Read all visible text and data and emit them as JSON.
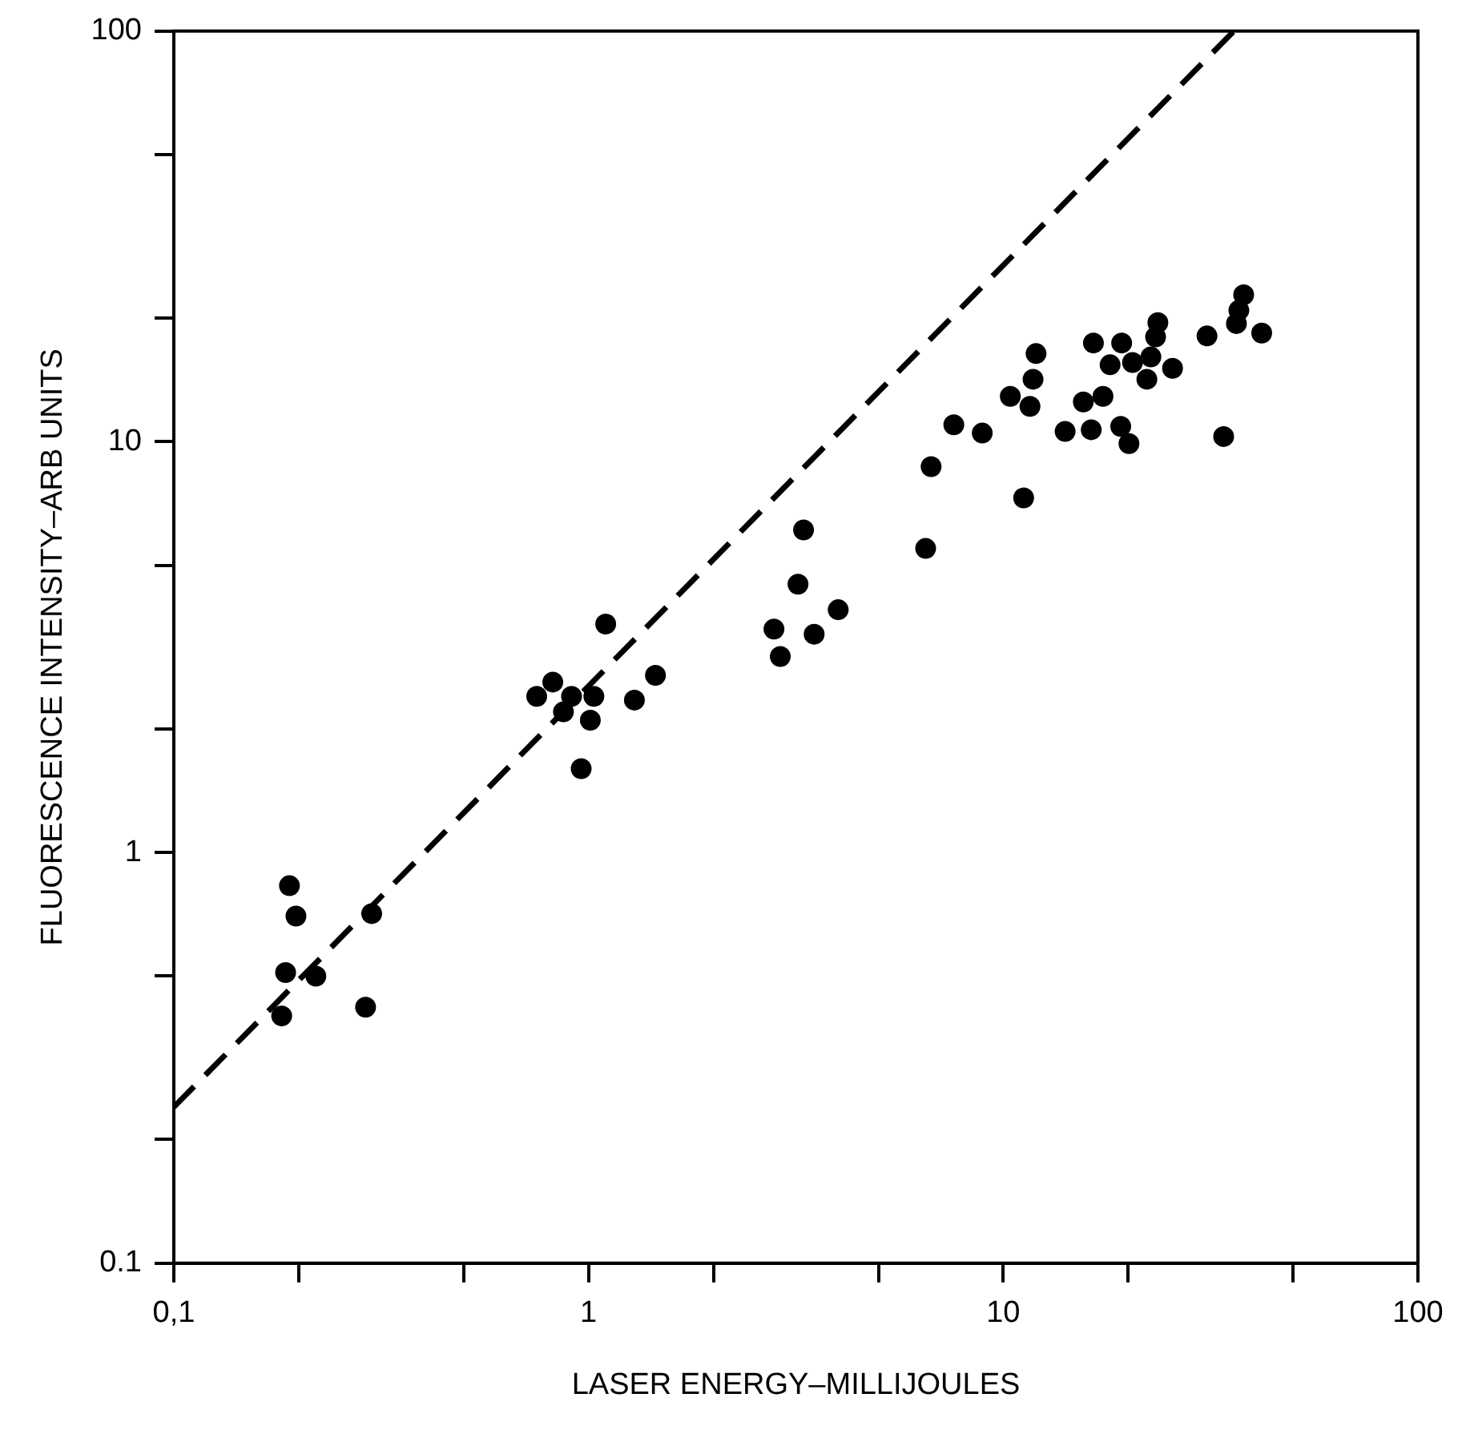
{
  "chart_data": {
    "type": "scatter",
    "xlabel": "LASER ENERGY–MILLIJOULES",
    "ylabel": "FLUORESCENCE INTENSITY–ARB UNITS",
    "log": "xy",
    "xlim": [
      0.1,
      100
    ],
    "ylim": [
      0.1,
      100
    ],
    "xticks": [
      {
        "value": 0.1,
        "label": "0,1"
      },
      {
        "value": 0.2,
        "label": null
      },
      {
        "value": 0.5,
        "label": null
      },
      1,
      {
        "value": 2,
        "label": null
      },
      {
        "value": 5,
        "label": null
      },
      10,
      {
        "value": 20,
        "label": null
      },
      {
        "value": 50,
        "label": null
      },
      100
    ],
    "yticks": [
      0.1,
      {
        "value": 0.2,
        "label": null
      },
      {
        "value": 0.5,
        "label": null
      },
      1,
      {
        "value": 2,
        "label": null
      },
      {
        "value": 5,
        "label": null
      },
      10,
      {
        "value": 20,
        "label": null
      },
      {
        "value": 50,
        "label": null
      },
      100
    ],
    "series": [
      {
        "type": "scatter",
        "color": "#000000",
        "marker": "circle",
        "x": [
          1.1,
          0.82,
          0.75,
          0.91,
          1.03,
          0.87,
          1.01,
          0.96,
          1.29,
          1.45,
          0.19,
          0.197,
          0.3,
          0.186,
          0.22,
          0.182,
          0.29,
          3.3,
          6.5,
          3.2,
          4.0,
          2.8,
          3.5,
          2.9,
          38,
          37,
          36.5,
          31,
          42,
          23.6,
          23.3,
          16.5,
          19.3,
          22.7,
          12.0,
          18.1,
          20.5,
          25.6,
          22.2,
          11.8,
          10.4,
          11.6,
          15.6,
          17.4,
          7.6,
          8.9,
          14.1,
          16.3,
          19.2,
          20.1,
          34,
          6.7,
          11.2
        ],
        "values": [
          3.6,
          2.6,
          2.4,
          2.4,
          2.4,
          2.2,
          2.1,
          1.6,
          2.35,
          2.7,
          0.83,
          0.7,
          0.71,
          0.51,
          0.5,
          0.4,
          0.42,
          6.1,
          5.5,
          4.5,
          3.9,
          3.5,
          3.4,
          3.0,
          22.8,
          20.9,
          19.4,
          18.1,
          18.4,
          19.5,
          18.0,
          17.4,
          17.4,
          16.1,
          16.4,
          15.4,
          15.6,
          15.1,
          14.2,
          14.2,
          12.9,
          12.2,
          12.5,
          12.9,
          11.0,
          10.5,
          10.6,
          10.7,
          10.9,
          9.9,
          10.3,
          8.7,
          7.3
        ]
      },
      {
        "type": "line",
        "color": "#000000",
        "marker": "none",
        "line_style": "dashed",
        "x": [
          0.1,
          36
        ],
        "values": [
          0.24,
          100
        ]
      }
    ]
  }
}
